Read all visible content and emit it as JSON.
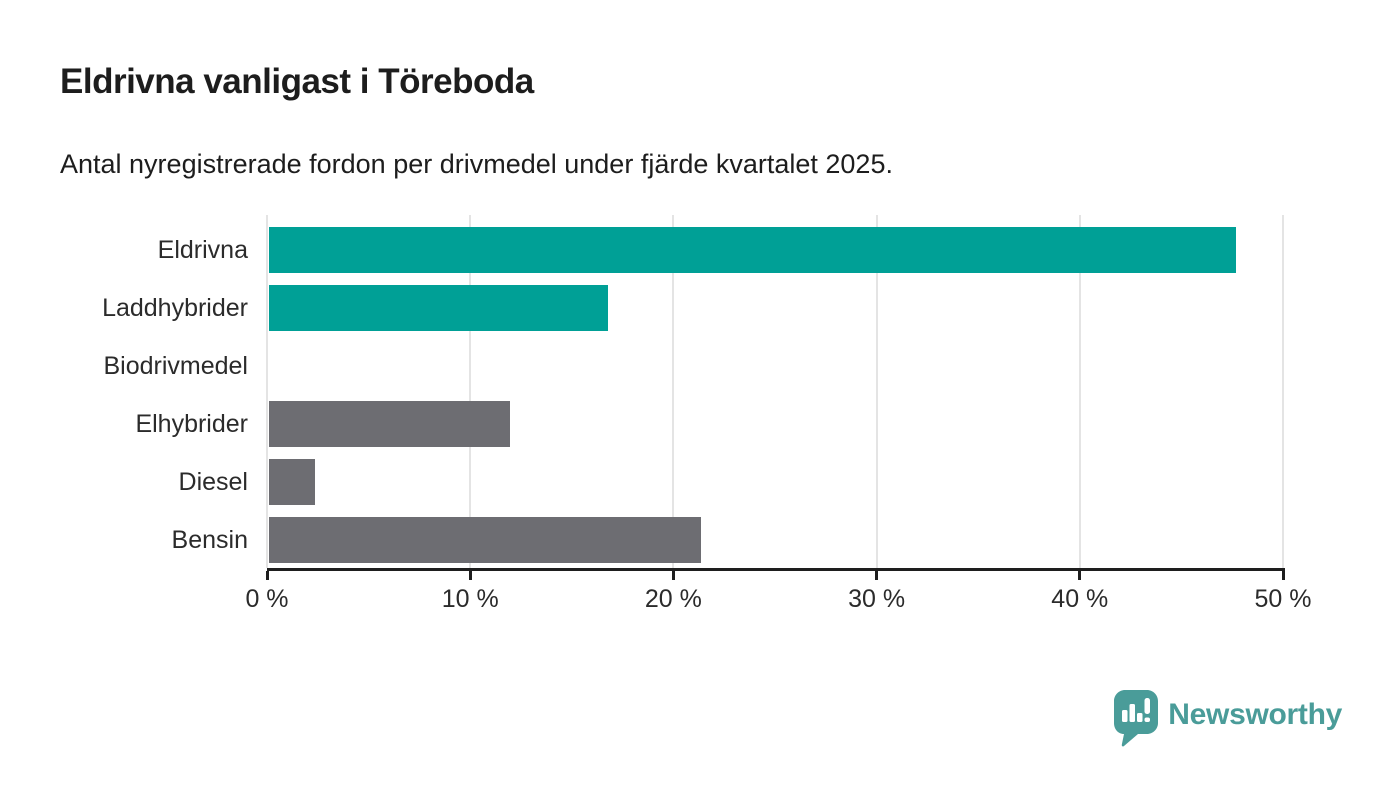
{
  "header": {
    "title": "Eldrivna vanligast i Töreboda",
    "subtitle": "Antal nyregistrerade fordon per drivmedel under fjärde kvartalet 2025."
  },
  "chart_data": {
    "type": "bar",
    "orientation": "horizontal",
    "title": "Eldrivna vanligast i Töreboda",
    "subtitle": "Antal nyregistrerade fordon per drivmedel under fjärde kvartalet 2025.",
    "categories": [
      "Eldrivna",
      "Laddhybrider",
      "Biodrivmedel",
      "Elhybrider",
      "Diesel",
      "Bensin"
    ],
    "values": [
      47.6,
      16.7,
      0,
      11.9,
      2.3,
      21.3
    ],
    "unit": "%",
    "xlabel": "",
    "ylabel": "",
    "xlim": [
      0,
      50
    ],
    "x_tick_values": [
      0,
      10,
      20,
      30,
      40,
      50
    ],
    "x_tick_labels": [
      "0 %",
      "10 %",
      "20 %",
      "30 %",
      "40 %",
      "50 %"
    ],
    "bar_colors": [
      "#00a096",
      "#00a096",
      "#00a096",
      "#6d6d72",
      "#6d6d72",
      "#6d6d72"
    ],
    "grid": true,
    "legend": "none"
  },
  "colors": {
    "teal": "#00a096",
    "gray": "#6d6d72",
    "gridline": "#e4e4e4",
    "axis": "#1e1e1e",
    "text": "#1d1d1d",
    "logo_teal": "#4a9c99"
  },
  "footer": {
    "brand": "Newsworthy"
  }
}
